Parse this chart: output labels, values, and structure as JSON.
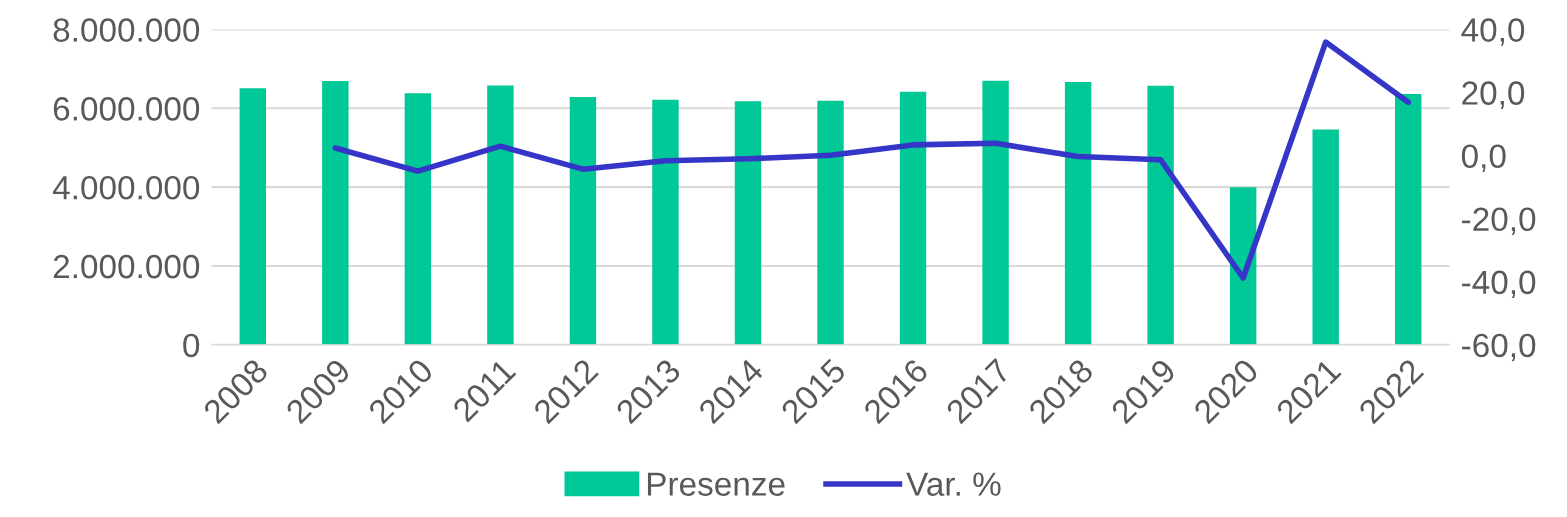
{
  "chart_data": {
    "type": "bar",
    "categories": [
      "2008",
      "2009",
      "2010",
      "2011",
      "2012",
      "2013",
      "2014",
      "2015",
      "2016",
      "2017",
      "2018",
      "2019",
      "2020",
      "2021",
      "2022"
    ],
    "series": [
      {
        "name": "Presenze",
        "color": "#00c896",
        "values": [
          6510000,
          6690000,
          6380000,
          6580000,
          6290000,
          6220000,
          6180000,
          6190000,
          6420000,
          6700000,
          6670000,
          6570000,
          4000000,
          5460000,
          6360000
        ]
      },
      {
        "name": "Var. %",
        "type": "line",
        "axis": "y2",
        "color": "#3535c8",
        "values": [
          null,
          2.4,
          -4.9,
          3.0,
          -4.3,
          -1.6,
          -1.0,
          0.1,
          3.4,
          3.9,
          -0.3,
          -1.3,
          -38.8,
          36.0,
          16.9
        ]
      }
    ],
    "ylim": [
      0,
      8000000
    ],
    "yticks": [
      {
        "value": 0,
        "label": "0"
      },
      {
        "value": 2000000,
        "label": "2.000.000"
      },
      {
        "value": 4000000,
        "label": "4.000.000"
      },
      {
        "value": 6000000,
        "label": "6.000.000"
      },
      {
        "value": 8000000,
        "label": "8.000.000"
      }
    ],
    "y2lim": [
      -60,
      40
    ],
    "y2ticks": [
      {
        "value": -60,
        "label": "-60,0"
      },
      {
        "value": -40,
        "label": "-40,0"
      },
      {
        "value": -20,
        "label": "-20,0"
      },
      {
        "value": 0,
        "label": "0,0"
      },
      {
        "value": 20,
        "label": "20,0"
      },
      {
        "value": 40,
        "label": "40,0"
      }
    ],
    "grid": "y",
    "legend": "bottom"
  }
}
